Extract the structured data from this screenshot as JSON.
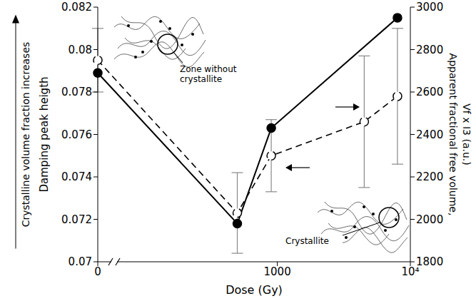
{
  "chart_data": {
    "type": "line",
    "x_label": "Dose (Gy)",
    "y_label": "Damping peak heigth",
    "y2_label": "Apparent fractional free volume, Vf x I3 (a.u.)",
    "log": "x",
    "xlim": [
      0,
      10000
    ],
    "xticks": [
      0,
      1000,
      {
        "value": 10000,
        "label": "10⁴"
      }
    ],
    "ylim": [
      0.07,
      0.082
    ],
    "yticks": [
      0.07,
      0.072,
      0.074,
      0.076,
      0.078,
      0.08,
      0.082
    ],
    "y2lim": [
      1800,
      3000
    ],
    "y2ticks": [
      1800,
      2000,
      2200,
      2400,
      2600,
      2800,
      3000
    ],
    "grid": false,
    "annotations": [
      {
        "text": "Crystalline volume fraction increases"
      },
      {
        "text": "Zone without crystallite"
      },
      {
        "text": "Crystallite"
      }
    ],
    "series": [
      {
        "axis": "y",
        "color": "#000000",
        "marker": "filled",
        "line_style": "solid",
        "x": [
          0,
          500,
          900,
          8000
        ],
        "values": [
          0.0789,
          0.0718,
          0.0763,
          0.0815
        ]
      },
      {
        "axis": "y2",
        "color": "#000000",
        "marker": "open",
        "line_style": "dashed",
        "x": [
          0,
          500,
          900,
          4500,
          8000
        ],
        "values": [
          2750,
          2030,
          2300,
          2460,
          2580
        ],
        "errors": [
          150,
          190,
          170,
          310,
          320
        ]
      }
    ]
  }
}
